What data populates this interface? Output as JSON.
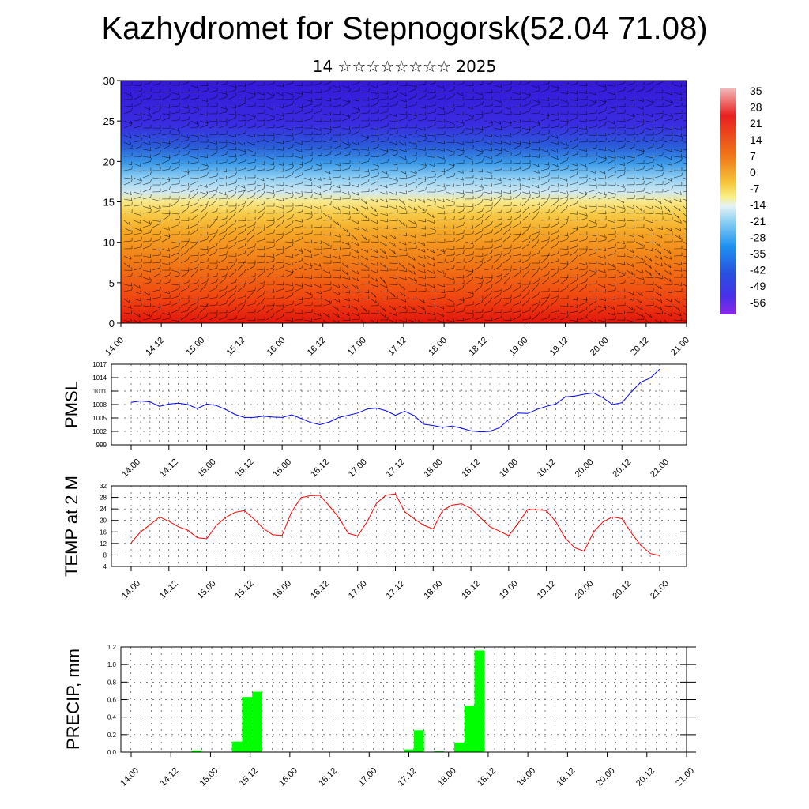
{
  "title": "Kazhydromet for Stepnogorsk(52.04 71.08)",
  "subtitle": "14 ☆☆☆☆☆☆☆☆ 2025",
  "colorbar_labels": [
    "35",
    "28",
    "21",
    "14",
    "7",
    "0",
    "-7",
    "-14",
    "-21",
    "-28",
    "-35",
    "-42",
    "-49",
    "-56"
  ],
  "time_ticks": [
    "14.00",
    "14.12",
    "15.00",
    "15.12",
    "16.00",
    "16.12",
    "17.00",
    "17.12",
    "18.00",
    "18.12",
    "19.00",
    "19.12",
    "20.00",
    "20.12",
    "21.00"
  ],
  "chart_data": [
    {
      "type": "heatmap",
      "name_hint": "vertical temperature cross-section with wind barbs",
      "x_range": [
        "14.00",
        "21.00"
      ],
      "ylim": [
        0,
        30
      ],
      "y_ticks": [
        0,
        5,
        10,
        15,
        20,
        25,
        30
      ],
      "colorscale_range": [
        -56,
        35
      ],
      "temperature_by_level": [
        {
          "level": 0,
          "value": 21
        },
        {
          "level": 5,
          "value": 14
        },
        {
          "level": 10,
          "value": 4
        },
        {
          "level": 15,
          "value": -10
        },
        {
          "level": 18,
          "value": -25
        },
        {
          "level": 21,
          "value": -40
        },
        {
          "level": 25,
          "value": -52
        },
        {
          "level": 30,
          "value": -56
        }
      ]
    },
    {
      "type": "line",
      "ylabel": "PMSL",
      "ylim": [
        999,
        1017
      ],
      "y_ticks": [
        999,
        1002,
        1005,
        1008,
        1011,
        1014,
        1017
      ],
      "color": "#0000ff",
      "step_hours": 3,
      "values": [
        1008.5,
        1008.8,
        1008.6,
        1007.6,
        1008.1,
        1008.3,
        1008.0,
        1007.1,
        1008.1,
        1007.8,
        1006.9,
        1005.8,
        1005.1,
        1005.1,
        1005.4,
        1005.2,
        1005.1,
        1005.7,
        1004.9,
        1004.0,
        1003.5,
        1004.1,
        1005.1,
        1005.6,
        1006.1,
        1007.0,
        1007.2,
        1006.6,
        1005.6,
        1006.5,
        1005.5,
        1003.6,
        1003.3,
        1002.9,
        1003.2,
        1002.7,
        1002.1,
        1001.9,
        1002.0,
        1002.8,
        1004.6,
        1006.1,
        1006.0,
        1006.9,
        1007.6,
        1008.1,
        1009.7,
        1009.9,
        1010.3,
        1010.6,
        1009.5,
        1008.0,
        1008.4,
        1010.8,
        1013.0,
        1013.9,
        1015.9
      ]
    },
    {
      "type": "line",
      "ylabel": "TEMP at 2 M",
      "ylim": [
        4,
        32
      ],
      "y_ticks": [
        4,
        8,
        12,
        16,
        20,
        24,
        28,
        32
      ],
      "color": "#ff0000",
      "step_hours": 3,
      "values": [
        12.2,
        16.0,
        18.5,
        21.2,
        19.7,
        17.8,
        16.6,
        14.0,
        13.6,
        18.2,
        21.0,
        22.8,
        23.4,
        20.5,
        17.2,
        15.0,
        14.8,
        23.0,
        27.9,
        28.6,
        28.7,
        25.0,
        21.0,
        15.5,
        14.6,
        19.5,
        26.0,
        28.8,
        29.2,
        23.0,
        20.5,
        18.3,
        17.0,
        23.5,
        25.3,
        25.8,
        24.2,
        21.0,
        17.8,
        16.3,
        14.7,
        19.0,
        23.8,
        23.7,
        23.4,
        19.5,
        13.8,
        10.5,
        9.3,
        16.0,
        19.5,
        21.2,
        20.6,
        15.6,
        11.3,
        8.5,
        7.8
      ]
    },
    {
      "type": "bar",
      "ylabel": "PRECIP, mm",
      "ylim": [
        0,
        1.2
      ],
      "y_ticks": [
        "0.0",
        "0.2",
        "0.4",
        "0.6",
        "0.8",
        "1.0",
        "1.2"
      ],
      "color": "#00ff00",
      "step_hours": 3,
      "values": [
        0,
        0,
        0,
        0,
        0,
        0,
        0,
        0.02,
        0,
        0,
        0,
        0.12,
        0.63,
        0.69,
        0,
        0,
        0,
        0,
        0,
        0,
        0,
        0,
        0,
        0,
        0,
        0,
        0,
        0,
        0.03,
        0.25,
        0,
        0.01,
        0,
        0.11,
        0.53,
        1.16,
        0,
        0,
        0,
        0,
        0,
        0,
        0,
        0,
        0,
        0,
        0,
        0,
        0,
        0,
        0,
        0,
        0,
        0,
        0,
        0
      ]
    }
  ]
}
